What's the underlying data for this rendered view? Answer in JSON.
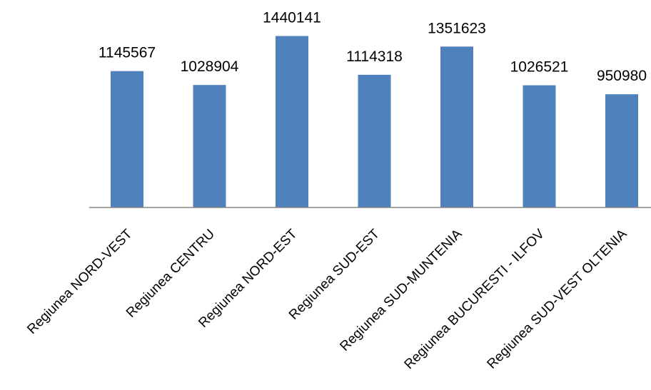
{
  "chart_data": {
    "type": "bar",
    "title": "",
    "xlabel": "",
    "ylabel": "",
    "categories": [
      "Regiunea NORD-VEST",
      "Regiunea CENTRU",
      "Regiunea NORD-EST",
      "Regiunea SUD-EST",
      "Regiunea SUD-MUNTENIA",
      "Regiunea BUCURESTI - ILFOV",
      "Regiunea SUD-VEST OLTENIA"
    ],
    "values": [
      1145567,
      1028904,
      1440141,
      1114318,
      1351623,
      1026521,
      950980
    ],
    "data_labels": [
      "1145567",
      "1028904",
      "1440141",
      "1114318",
      "1351623",
      "1026521",
      "950980"
    ],
    "ylim": [
      0,
      1600000
    ],
    "grid": false,
    "legend": "none",
    "bar_color": "#4F81BD"
  }
}
